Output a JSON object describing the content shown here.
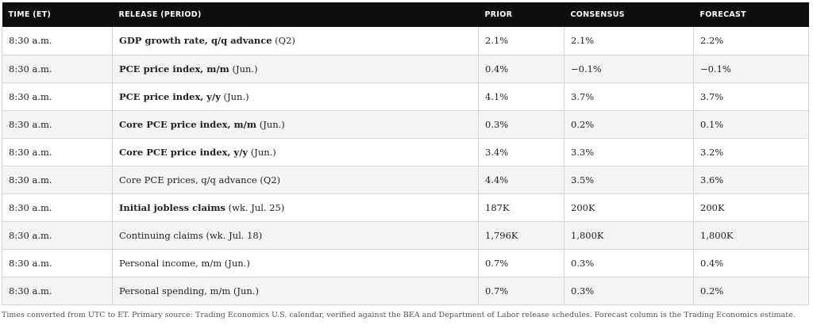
{
  "table": {
    "headers": {
      "time": "TIME (ET)",
      "release": "RELEASE (PERIOD)",
      "prior": "PRIOR",
      "consensus": "CONSENSUS",
      "forecast": "FORECAST"
    },
    "rows": [
      {
        "time": "8:30 a.m.",
        "release": "GDP growth rate, q/q advance",
        "period": " (Q2)",
        "bold": true,
        "prior": "2.1%",
        "consensus": "2.1%",
        "forecast": "2.2%"
      },
      {
        "time": "8:30 a.m.",
        "release": "PCE price index, m/m",
        "period": " (Jun.)",
        "bold": true,
        "prior": "0.4%",
        "consensus": "−0.1%",
        "forecast": "−0.1%"
      },
      {
        "time": "8:30 a.m.",
        "release": "PCE price index, y/y",
        "period": " (Jun.)",
        "bold": true,
        "prior": "4.1%",
        "consensus": "3.7%",
        "forecast": "3.7%"
      },
      {
        "time": "8:30 a.m.",
        "release": "Core PCE price index, m/m",
        "period": " (Jun.)",
        "bold": true,
        "prior": "0.3%",
        "consensus": "0.2%",
        "forecast": "0.1%"
      },
      {
        "time": "8:30 a.m.",
        "release": "Core PCE price index, y/y",
        "period": " (Jun.)",
        "bold": true,
        "prior": "3.4%",
        "consensus": "3.3%",
        "forecast": "3.2%"
      },
      {
        "time": "8:30 a.m.",
        "release": "Core PCE prices, q/q advance",
        "period": " (Q2)",
        "bold": false,
        "prior": "4.4%",
        "consensus": "3.5%",
        "forecast": "3.6%"
      },
      {
        "time": "8:30 a.m.",
        "release": "Initial jobless claims",
        "period": " (wk. Jul. 25)",
        "bold": true,
        "prior": "187K",
        "consensus": "200K",
        "forecast": "200K"
      },
      {
        "time": "8:30 a.m.",
        "release": "Continuing claims",
        "period": " (wk. Jul. 18)",
        "bold": false,
        "prior": "1,796K",
        "consensus": "1,800K",
        "forecast": "1,800K"
      },
      {
        "time": "8:30 a.m.",
        "release": "Personal income, m/m",
        "period": " (Jun.)",
        "bold": false,
        "prior": "0.7%",
        "consensus": "0.3%",
        "forecast": "0.4%"
      },
      {
        "time": "8:30 a.m.",
        "release": "Personal spending, m/m",
        "period": " (Jun.)",
        "bold": false,
        "prior": "0.7%",
        "consensus": "0.3%",
        "forecast": "0.2%"
      }
    ]
  },
  "footnote": "Times converted from UTC to ET. Primary source: Trading Economics U.S. calendar, verified against the BEA and Department of Labor release schedules. Forecast column is the Trading Economics estimate.",
  "colors": {
    "header_bg": "#0e0e0e",
    "header_text": "#ffffff",
    "alt_row_bg": "#f4f4f4",
    "border": "#d6d6d6"
  }
}
